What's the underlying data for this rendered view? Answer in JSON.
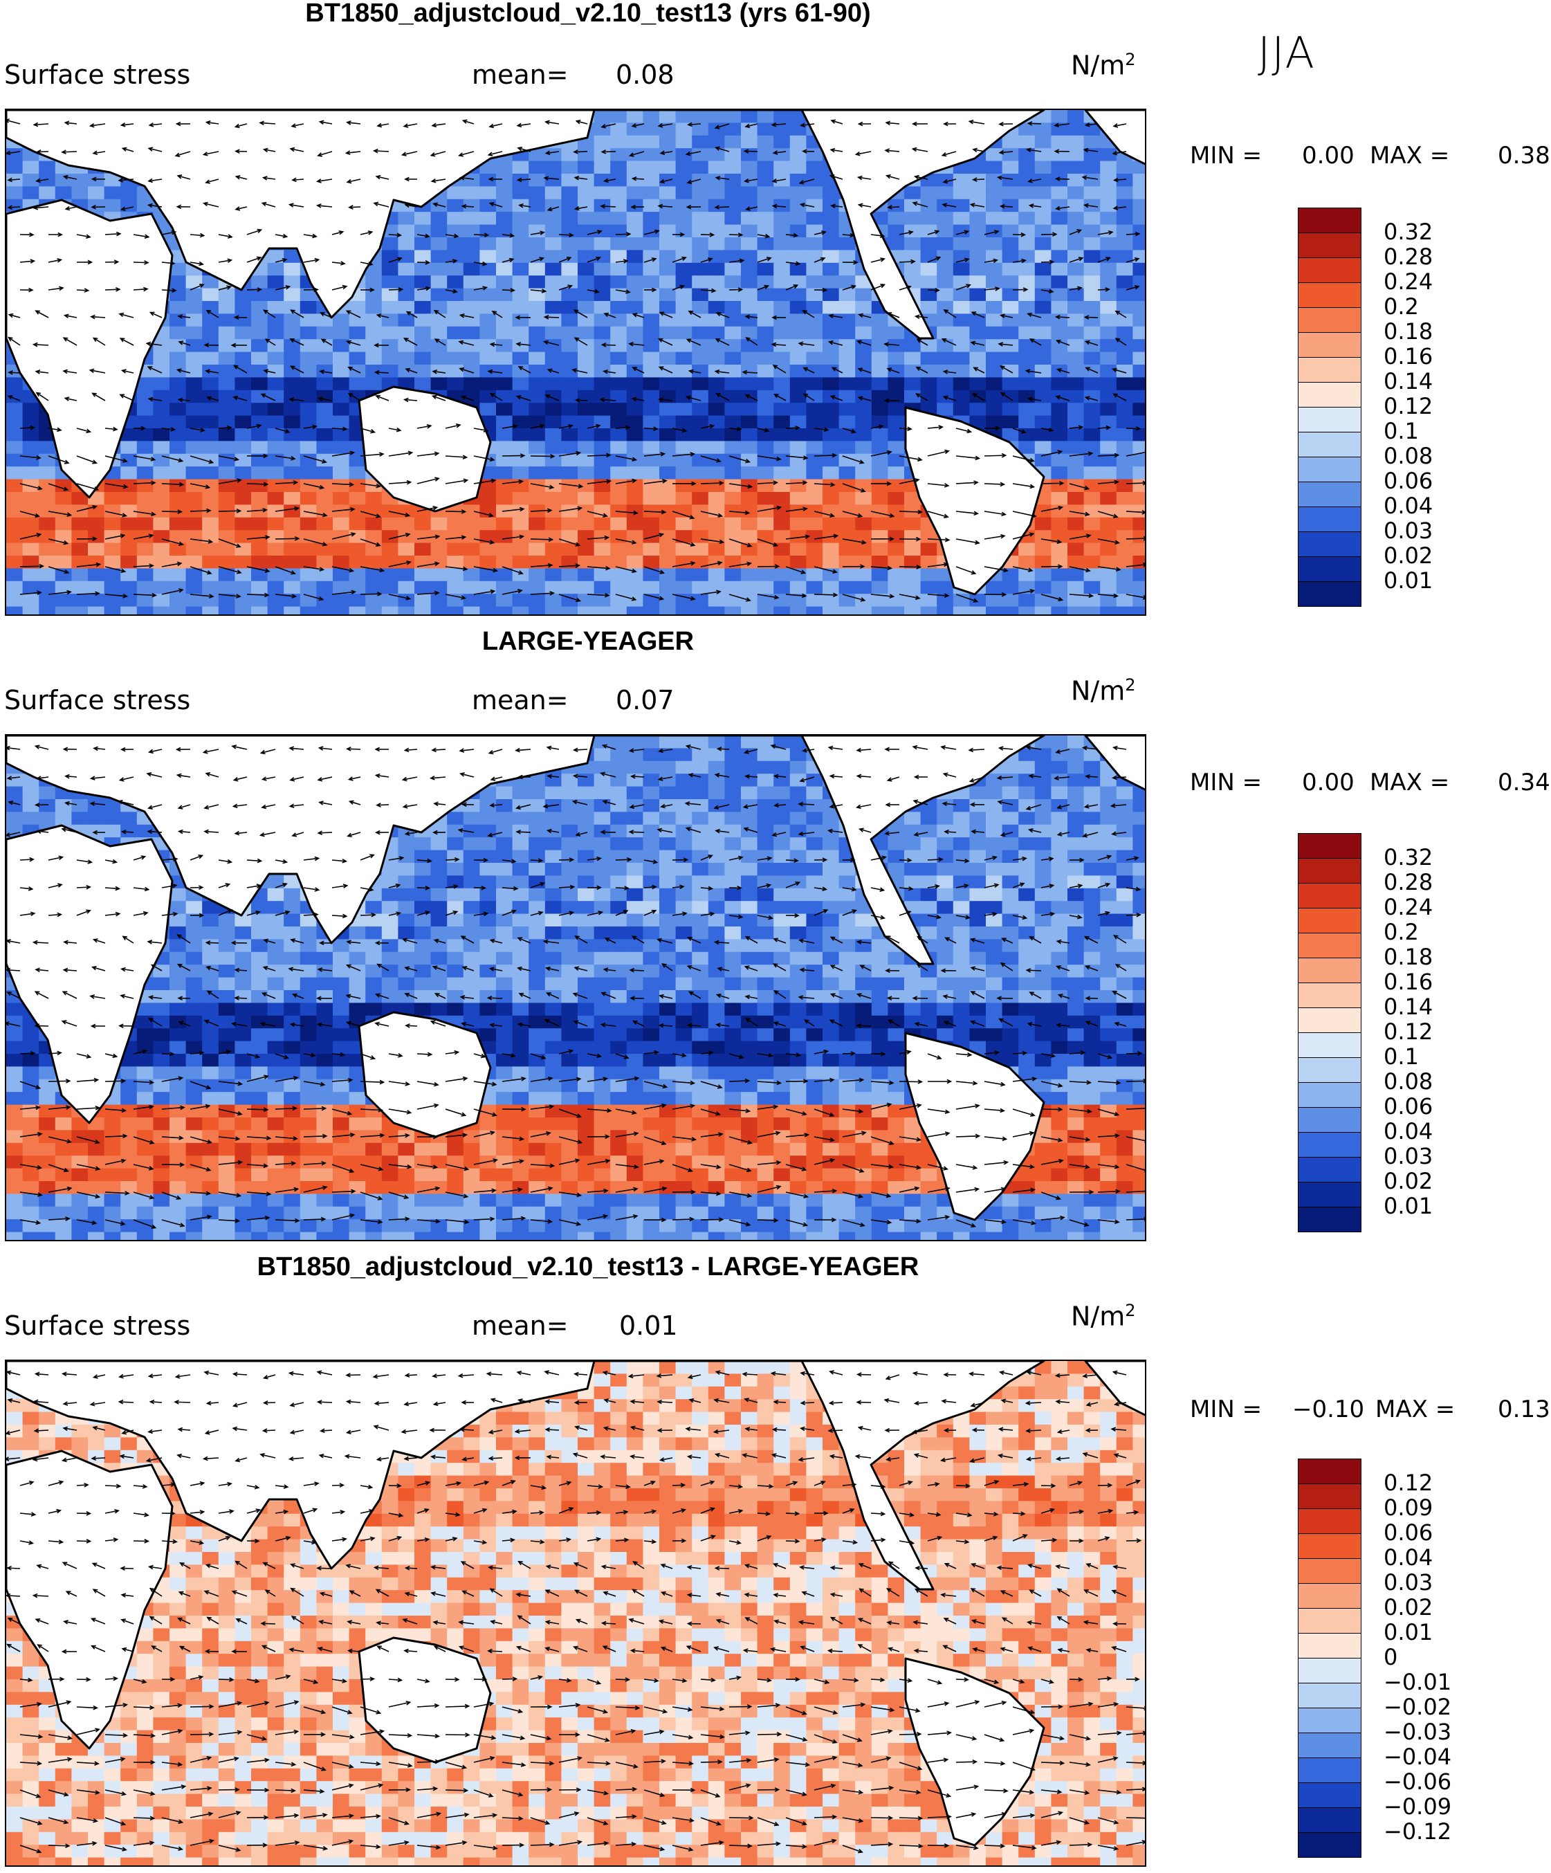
{
  "chart_data": [
    {
      "type": "heatmap",
      "title": "BT1850_adjustcloud_v2.10_test13 (yrs 61-90)",
      "variable": "Surface stress",
      "mean_label": "mean=",
      "mean": "0.08",
      "units": "N/m",
      "units_sup": "2",
      "min_label": "MIN =",
      "min": "0.00",
      "max_label": "MAX =",
      "max": "0.38",
      "colorbar_levels": [
        "0.32",
        "0.28",
        "0.24",
        "0.2",
        "0.18",
        "0.16",
        "0.14",
        "0.12",
        "0.1",
        "0.08",
        "0.06",
        "0.04",
        "0.03",
        "0.02",
        "0.01"
      ],
      "colorbar_colors": [
        "#8c0a10",
        "#b51e12",
        "#d8381c",
        "#ee5a2c",
        "#f47a4e",
        "#f8a27e",
        "#fbc8ac",
        "#fde6d8",
        "#dbe8f8",
        "#b8d2f4",
        "#8cb4ee",
        "#5c8ee6",
        "#3468dc",
        "#1a46c4",
        "#0c2a9a",
        "#061c78"
      ]
    },
    {
      "type": "heatmap",
      "title": "LARGE-YEAGER",
      "variable": "Surface stress",
      "mean_label": "mean=",
      "mean": "0.07",
      "units": "N/m",
      "units_sup": "2",
      "min_label": "MIN =",
      "min": "0.00",
      "max_label": "MAX =",
      "max": "0.34",
      "colorbar_levels": [
        "0.32",
        "0.28",
        "0.24",
        "0.2",
        "0.18",
        "0.16",
        "0.14",
        "0.12",
        "0.1",
        "0.08",
        "0.06",
        "0.04",
        "0.03",
        "0.02",
        "0.01"
      ],
      "colorbar_colors": [
        "#8c0a10",
        "#b51e12",
        "#d8381c",
        "#ee5a2c",
        "#f47a4e",
        "#f8a27e",
        "#fbc8ac",
        "#fde6d8",
        "#dbe8f8",
        "#b8d2f4",
        "#8cb4ee",
        "#5c8ee6",
        "#3468dc",
        "#1a46c4",
        "#0c2a9a",
        "#061c78"
      ]
    },
    {
      "type": "heatmap",
      "title": "BT1850_adjustcloud_v2.10_test13 - LARGE-YEAGER",
      "variable": "Surface stress",
      "mean_label": "mean=",
      "mean": "0.01",
      "units": "N/m",
      "units_sup": "2",
      "min_label": "MIN =",
      "min": "−0.10",
      "max_label": "MAX =",
      "max": "0.13",
      "colorbar_levels": [
        "0.12",
        "0.09",
        "0.06",
        "0.04",
        "0.03",
        "0.02",
        "0.01",
        "0",
        "−0.01",
        "−0.02",
        "−0.03",
        "−0.04",
        "−0.06",
        "−0.09",
        "−0.12"
      ],
      "colorbar_colors": [
        "#8c0a10",
        "#b51e12",
        "#d8381c",
        "#ee5a2c",
        "#f47a4e",
        "#f8a27e",
        "#fbc8ac",
        "#fde6d8",
        "#dbe8f8",
        "#b8d2f4",
        "#8cb4ee",
        "#5c8ee6",
        "#3468dc",
        "#1a46c4",
        "#0c2a9a",
        "#061c78"
      ]
    }
  ],
  "season": "JJA"
}
